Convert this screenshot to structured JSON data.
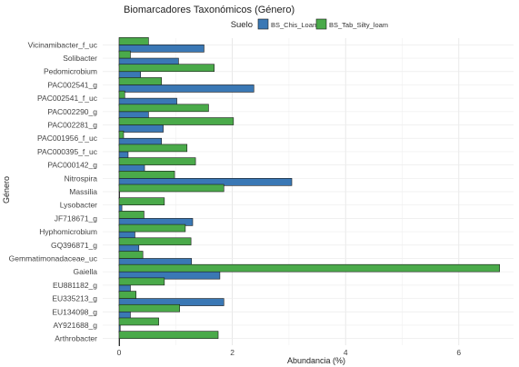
{
  "chart_data": {
    "type": "bar",
    "orientation": "horizontal",
    "title": "Biomarcadores Taxonómicos (Género)",
    "xlabel": "Abundancia (%)",
    "ylabel": "Género",
    "legend": {
      "title": "Suelo",
      "placement": "top-right"
    },
    "xlim": [
      -0.15,
      6.9
    ],
    "xticks": [
      0,
      2,
      4,
      6
    ],
    "grid": true,
    "categories": [
      "Vicinamibacter_f_uc",
      "Solibacter",
      "Pedomicrobium",
      "PAC002541_g",
      "PAC002541_f_uc",
      "PAC002290_g",
      "PAC002281_g",
      "PAC001956_f_uc",
      "PAC000395_f_uc",
      "PAC000142_g",
      "Nitrospira",
      "Massilia",
      "Lysobacter",
      "JF718671_g",
      "Hyphomicrobium",
      "GQ396871_g",
      "Gemmatimonadaceae_uc",
      "Gaiella",
      "EU881182_g",
      "EU335213_g",
      "EU134098_g",
      "AY921688_g",
      "Arthrobacter"
    ],
    "series": [
      {
        "name": "BS_Chis_Loamy",
        "color": "#3a78b5",
        "values": [
          1.5,
          1.05,
          0.38,
          2.38,
          1.02,
          0.52,
          0.78,
          0.75,
          0.16,
          0.45,
          3.05,
          0.0,
          0.05,
          1.3,
          0.28,
          0.35,
          1.28,
          1.78,
          0.2,
          1.85,
          0.2,
          0.02,
          0.0
        ]
      },
      {
        "name": "BS_Tab_Silty_loam",
        "color": "#4aaa4a",
        "values": [
          0.52,
          0.2,
          1.68,
          0.75,
          0.1,
          1.58,
          2.02,
          0.08,
          1.2,
          1.35,
          0.98,
          1.85,
          0.8,
          0.44,
          1.17,
          1.27,
          0.42,
          6.72,
          0.8,
          0.3,
          1.07,
          0.7,
          1.75
        ]
      }
    ]
  }
}
